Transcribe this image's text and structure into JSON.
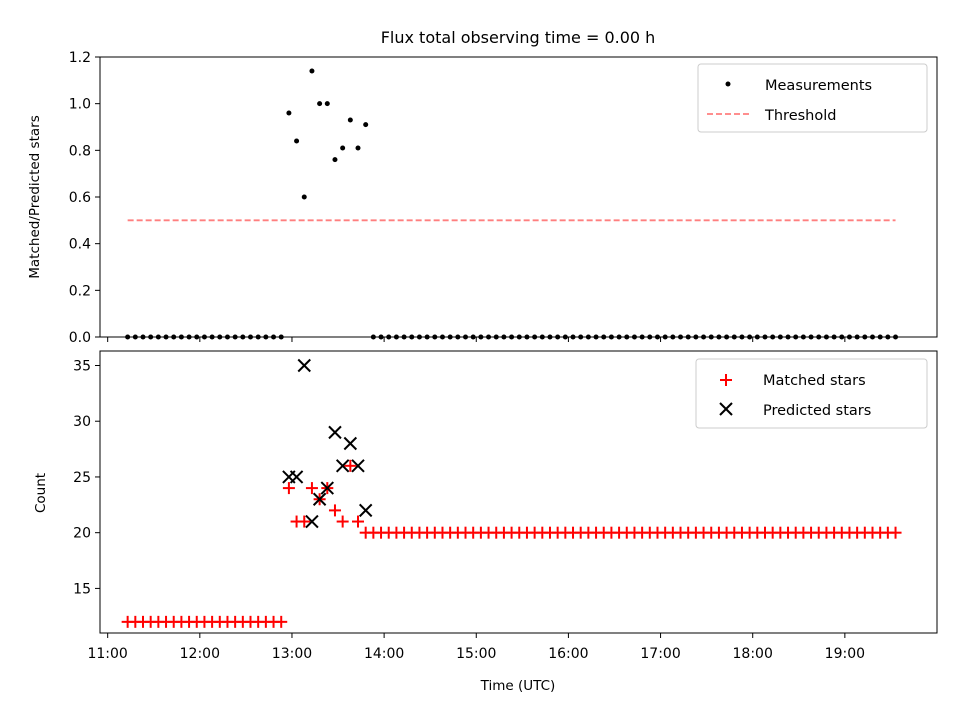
{
  "chart_data": [
    {
      "type": "scatter",
      "title": "Flux total observing time = 0.00 h",
      "xlabel": "",
      "ylabel": "Matched/Predicted stars",
      "xlim": [
        "10:55",
        "20:00"
      ],
      "ylim": [
        0,
        1.2
      ],
      "yticks": [
        "0.0",
        "0.2",
        "0.4",
        "0.6",
        "0.8",
        "1.0",
        "1.2"
      ],
      "grid": false,
      "legend_position": "top-right",
      "series": [
        {
          "name": "Measurements",
          "marker": "dot",
          "color": "#000000",
          "points": [
            {
              "x": "11:13",
              "y": 0
            },
            {
              "x": "11:18",
              "y": 0
            },
            {
              "x": "11:23",
              "y": 0
            },
            {
              "x": "11:28",
              "y": 0
            },
            {
              "x": "11:33",
              "y": 0
            },
            {
              "x": "11:38",
              "y": 0
            },
            {
              "x": "11:43",
              "y": 0
            },
            {
              "x": "11:48",
              "y": 0
            },
            {
              "x": "11:53",
              "y": 0
            },
            {
              "x": "11:58",
              "y": 0
            },
            {
              "x": "12:03",
              "y": 0
            },
            {
              "x": "12:08",
              "y": 0
            },
            {
              "x": "12:13",
              "y": 0
            },
            {
              "x": "12:18",
              "y": 0
            },
            {
              "x": "12:23",
              "y": 0
            },
            {
              "x": "12:28",
              "y": 0
            },
            {
              "x": "12:33",
              "y": 0
            },
            {
              "x": "12:38",
              "y": 0
            },
            {
              "x": "12:43",
              "y": 0
            },
            {
              "x": "12:48",
              "y": 0
            },
            {
              "x": "12:53",
              "y": 0
            },
            {
              "x": "12:58",
              "y": 0.96
            },
            {
              "x": "13:03",
              "y": 0.84
            },
            {
              "x": "13:08",
              "y": 0.6
            },
            {
              "x": "13:13",
              "y": 1.14
            },
            {
              "x": "13:18",
              "y": 1.0
            },
            {
              "x": "13:23",
              "y": 1.0
            },
            {
              "x": "13:28",
              "y": 0.76
            },
            {
              "x": "13:33",
              "y": 0.81
            },
            {
              "x": "13:38",
              "y": 0.93
            },
            {
              "x": "13:43",
              "y": 0.81
            },
            {
              "x": "13:48",
              "y": 0.91
            },
            {
              "x": "13:53",
              "y": 0
            },
            {
              "x": "13:58",
              "y": 0
            },
            {
              "x": "14:03",
              "y": 0
            },
            {
              "x": "14:08",
              "y": 0
            },
            {
              "x": "14:13",
              "y": 0
            },
            {
              "x": "14:18",
              "y": 0
            },
            {
              "x": "14:23",
              "y": 0
            },
            {
              "x": "14:28",
              "y": 0
            },
            {
              "x": "14:33",
              "y": 0
            },
            {
              "x": "14:38",
              "y": 0
            },
            {
              "x": "14:43",
              "y": 0
            },
            {
              "x": "14:48",
              "y": 0
            },
            {
              "x": "14:53",
              "y": 0
            },
            {
              "x": "14:58",
              "y": 0
            },
            {
              "x": "15:03",
              "y": 0
            },
            {
              "x": "15:08",
              "y": 0
            },
            {
              "x": "15:13",
              "y": 0
            },
            {
              "x": "15:18",
              "y": 0
            },
            {
              "x": "15:23",
              "y": 0
            },
            {
              "x": "15:28",
              "y": 0
            },
            {
              "x": "15:33",
              "y": 0
            },
            {
              "x": "15:38",
              "y": 0
            },
            {
              "x": "15:43",
              "y": 0
            },
            {
              "x": "15:48",
              "y": 0
            },
            {
              "x": "15:53",
              "y": 0
            },
            {
              "x": "15:58",
              "y": 0
            },
            {
              "x": "16:03",
              "y": 0
            },
            {
              "x": "16:08",
              "y": 0
            },
            {
              "x": "16:13",
              "y": 0
            },
            {
              "x": "16:18",
              "y": 0
            },
            {
              "x": "16:23",
              "y": 0
            },
            {
              "x": "16:28",
              "y": 0
            },
            {
              "x": "16:33",
              "y": 0
            },
            {
              "x": "16:38",
              "y": 0
            },
            {
              "x": "16:43",
              "y": 0
            },
            {
              "x": "16:48",
              "y": 0
            },
            {
              "x": "16:53",
              "y": 0
            },
            {
              "x": "16:58",
              "y": 0
            },
            {
              "x": "17:03",
              "y": 0
            },
            {
              "x": "17:08",
              "y": 0
            },
            {
              "x": "17:13",
              "y": 0
            },
            {
              "x": "17:18",
              "y": 0
            },
            {
              "x": "17:23",
              "y": 0
            },
            {
              "x": "17:28",
              "y": 0
            },
            {
              "x": "17:33",
              "y": 0
            },
            {
              "x": "17:38",
              "y": 0
            },
            {
              "x": "17:43",
              "y": 0
            },
            {
              "x": "17:48",
              "y": 0
            },
            {
              "x": "17:53",
              "y": 0
            },
            {
              "x": "17:58",
              "y": 0
            },
            {
              "x": "18:03",
              "y": 0
            },
            {
              "x": "18:08",
              "y": 0
            },
            {
              "x": "18:13",
              "y": 0
            },
            {
              "x": "18:18",
              "y": 0
            },
            {
              "x": "18:23",
              "y": 0
            },
            {
              "x": "18:28",
              "y": 0
            },
            {
              "x": "18:33",
              "y": 0
            },
            {
              "x": "18:38",
              "y": 0
            },
            {
              "x": "18:43",
              "y": 0
            },
            {
              "x": "18:48",
              "y": 0
            },
            {
              "x": "18:53",
              "y": 0
            },
            {
              "x": "18:58",
              "y": 0
            },
            {
              "x": "19:03",
              "y": 0
            },
            {
              "x": "19:08",
              "y": 0
            },
            {
              "x": "19:13",
              "y": 0
            },
            {
              "x": "19:18",
              "y": 0
            },
            {
              "x": "19:23",
              "y": 0
            },
            {
              "x": "19:28",
              "y": 0
            },
            {
              "x": "19:33",
              "y": 0
            }
          ]
        },
        {
          "name": "Threshold",
          "type": "line",
          "style": "dashed",
          "color": "#ff7f7f",
          "points": [
            {
              "x": "11:13",
              "y": 0.5
            },
            {
              "x": "19:33",
              "y": 0.5
            }
          ]
        }
      ]
    },
    {
      "type": "scatter",
      "title": "",
      "xlabel": "Time (UTC)",
      "ylabel": "Count",
      "xlim": [
        "10:55",
        "20:00"
      ],
      "xticks": [
        "11:00",
        "12:00",
        "13:00",
        "14:00",
        "15:00",
        "16:00",
        "17:00",
        "18:00",
        "19:00"
      ],
      "ylim": [
        11,
        36.3
      ],
      "yticks": [
        "15",
        "20",
        "25",
        "30",
        "35"
      ],
      "grid": false,
      "legend_position": "top-right",
      "series": [
        {
          "name": "Matched stars",
          "marker": "plus",
          "color": "#ff0000",
          "points": [
            {
              "x": "11:13",
              "y": 12
            },
            {
              "x": "11:18",
              "y": 12
            },
            {
              "x": "11:23",
              "y": 12
            },
            {
              "x": "11:28",
              "y": 12
            },
            {
              "x": "11:33",
              "y": 12
            },
            {
              "x": "11:38",
              "y": 12
            },
            {
              "x": "11:43",
              "y": 12
            },
            {
              "x": "11:48",
              "y": 12
            },
            {
              "x": "11:53",
              "y": 12
            },
            {
              "x": "11:58",
              "y": 12
            },
            {
              "x": "12:03",
              "y": 12
            },
            {
              "x": "12:08",
              "y": 12
            },
            {
              "x": "12:13",
              "y": 12
            },
            {
              "x": "12:18",
              "y": 12
            },
            {
              "x": "12:23",
              "y": 12
            },
            {
              "x": "12:28",
              "y": 12
            },
            {
              "x": "12:33",
              "y": 12
            },
            {
              "x": "12:38",
              "y": 12
            },
            {
              "x": "12:43",
              "y": 12
            },
            {
              "x": "12:48",
              "y": 12
            },
            {
              "x": "12:53",
              "y": 12
            },
            {
              "x": "12:58",
              "y": 24
            },
            {
              "x": "13:03",
              "y": 21
            },
            {
              "x": "13:08",
              "y": 21
            },
            {
              "x": "13:13",
              "y": 24
            },
            {
              "x": "13:18",
              "y": 23
            },
            {
              "x": "13:23",
              "y": 24
            },
            {
              "x": "13:28",
              "y": 22
            },
            {
              "x": "13:33",
              "y": 21
            },
            {
              "x": "13:38",
              "y": 26
            },
            {
              "x": "13:43",
              "y": 21
            },
            {
              "x": "13:48",
              "y": 20
            },
            {
              "x": "13:53",
              "y": 20
            },
            {
              "x": "13:58",
              "y": 20
            },
            {
              "x": "14:03",
              "y": 20
            },
            {
              "x": "14:08",
              "y": 20
            },
            {
              "x": "14:13",
              "y": 20
            },
            {
              "x": "14:18",
              "y": 20
            },
            {
              "x": "14:23",
              "y": 20
            },
            {
              "x": "14:28",
              "y": 20
            },
            {
              "x": "14:33",
              "y": 20
            },
            {
              "x": "14:38",
              "y": 20
            },
            {
              "x": "14:43",
              "y": 20
            },
            {
              "x": "14:48",
              "y": 20
            },
            {
              "x": "14:53",
              "y": 20
            },
            {
              "x": "14:58",
              "y": 20
            },
            {
              "x": "15:03",
              "y": 20
            },
            {
              "x": "15:08",
              "y": 20
            },
            {
              "x": "15:13",
              "y": 20
            },
            {
              "x": "15:18",
              "y": 20
            },
            {
              "x": "15:23",
              "y": 20
            },
            {
              "x": "15:28",
              "y": 20
            },
            {
              "x": "15:33",
              "y": 20
            },
            {
              "x": "15:38",
              "y": 20
            },
            {
              "x": "15:43",
              "y": 20
            },
            {
              "x": "15:48",
              "y": 20
            },
            {
              "x": "15:53",
              "y": 20
            },
            {
              "x": "15:58",
              "y": 20
            },
            {
              "x": "16:03",
              "y": 20
            },
            {
              "x": "16:08",
              "y": 20
            },
            {
              "x": "16:13",
              "y": 20
            },
            {
              "x": "16:18",
              "y": 20
            },
            {
              "x": "16:23",
              "y": 20
            },
            {
              "x": "16:28",
              "y": 20
            },
            {
              "x": "16:33",
              "y": 20
            },
            {
              "x": "16:38",
              "y": 20
            },
            {
              "x": "16:43",
              "y": 20
            },
            {
              "x": "16:48",
              "y": 20
            },
            {
              "x": "16:53",
              "y": 20
            },
            {
              "x": "16:58",
              "y": 20
            },
            {
              "x": "17:03",
              "y": 20
            },
            {
              "x": "17:08",
              "y": 20
            },
            {
              "x": "17:13",
              "y": 20
            },
            {
              "x": "17:18",
              "y": 20
            },
            {
              "x": "17:23",
              "y": 20
            },
            {
              "x": "17:28",
              "y": 20
            },
            {
              "x": "17:33",
              "y": 20
            },
            {
              "x": "17:38",
              "y": 20
            },
            {
              "x": "17:43",
              "y": 20
            },
            {
              "x": "17:48",
              "y": 20
            },
            {
              "x": "17:53",
              "y": 20
            },
            {
              "x": "17:58",
              "y": 20
            },
            {
              "x": "18:03",
              "y": 20
            },
            {
              "x": "18:08",
              "y": 20
            },
            {
              "x": "18:13",
              "y": 20
            },
            {
              "x": "18:18",
              "y": 20
            },
            {
              "x": "18:23",
              "y": 20
            },
            {
              "x": "18:28",
              "y": 20
            },
            {
              "x": "18:33",
              "y": 20
            },
            {
              "x": "18:38",
              "y": 20
            },
            {
              "x": "18:43",
              "y": 20
            },
            {
              "x": "18:48",
              "y": 20
            },
            {
              "x": "18:53",
              "y": 20
            },
            {
              "x": "18:58",
              "y": 20
            },
            {
              "x": "19:03",
              "y": 20
            },
            {
              "x": "19:08",
              "y": 20
            },
            {
              "x": "19:13",
              "y": 20
            },
            {
              "x": "19:18",
              "y": 20
            },
            {
              "x": "19:23",
              "y": 20
            },
            {
              "x": "19:28",
              "y": 20
            },
            {
              "x": "19:33",
              "y": 20
            }
          ]
        },
        {
          "name": "Predicted stars",
          "marker": "x",
          "color": "#000000",
          "points": [
            {
              "x": "12:58",
              "y": 25
            },
            {
              "x": "13:03",
              "y": 25
            },
            {
              "x": "13:08",
              "y": 35
            },
            {
              "x": "13:13",
              "y": 21
            },
            {
              "x": "13:18",
              "y": 23
            },
            {
              "x": "13:23",
              "y": 24
            },
            {
              "x": "13:28",
              "y": 29
            },
            {
              "x": "13:33",
              "y": 26
            },
            {
              "x": "13:38",
              "y": 28
            },
            {
              "x": "13:43",
              "y": 26
            },
            {
              "x": "13:48",
              "y": 22
            }
          ]
        }
      ]
    }
  ]
}
